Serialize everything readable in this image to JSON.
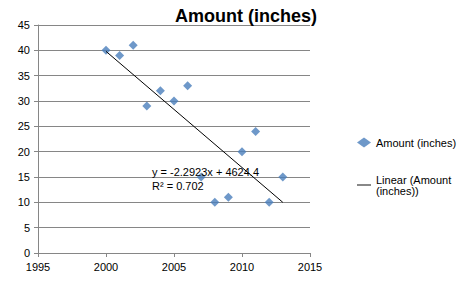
{
  "chart_data": {
    "type": "scatter",
    "title": "Amount (inches)",
    "series": [
      {
        "name": "Amount (inches)",
        "type": "scatter",
        "marker": "diamond",
        "color": "#4a7ebb",
        "x": [
          2000,
          2001,
          2002,
          2003,
          2004,
          2005,
          2006,
          2007,
          2008,
          2009,
          2010,
          2011,
          2012,
          2013
        ],
        "values": [
          40,
          39,
          41,
          29,
          32,
          30,
          33,
          15,
          10,
          11,
          20,
          24,
          10,
          15
        ]
      },
      {
        "name": "Linear (Amount (inches))",
        "type": "line",
        "line_style": "solid",
        "color": "#000000",
        "x": [
          2000,
          2013
        ],
        "values": [
          39.8,
          10.0
        ]
      }
    ],
    "annotations": [
      "y = -2.2923x + 4624.4",
      "R² = 0.702"
    ],
    "xlim": [
      1995,
      2015
    ],
    "xticks": [
      1995,
      2000,
      2005,
      2010,
      2015
    ],
    "ylim": [
      0,
      45
    ],
    "yticks": [
      0,
      5,
      10,
      15,
      20,
      25,
      30,
      35,
      40,
      45
    ],
    "grid": true,
    "legend": "right"
  }
}
